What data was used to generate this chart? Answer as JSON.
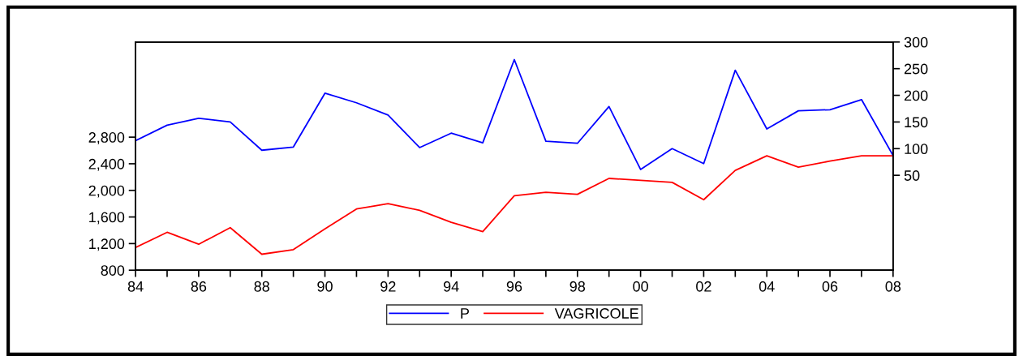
{
  "chart_data": {
    "type": "line",
    "x": [
      1984,
      1985,
      1986,
      1987,
      1988,
      1989,
      1990,
      1991,
      1992,
      1993,
      1994,
      1995,
      1996,
      1997,
      1998,
      1999,
      2000,
      2001,
      2002,
      2003,
      2004,
      2005,
      2006,
      2007,
      2008
    ],
    "series": [
      {
        "name": "P",
        "color": "#0000ff",
        "axis": "y2",
        "values": [
          115,
          144,
          157,
          150,
          97,
          103,
          204,
          186,
          163,
          102,
          129,
          111,
          267,
          114,
          110,
          179,
          61,
          100,
          72,
          247,
          137,
          171,
          173,
          192,
          87
        ]
      },
      {
        "name": "VAGRICOLE",
        "color": "#ff0000",
        "values": [
          1140,
          1370,
          1190,
          1440,
          1040,
          1110,
          1420,
          1720,
          1800,
          1700,
          1520,
          1380,
          1920,
          1970,
          1940,
          2180,
          2150,
          2120,
          1860,
          2300,
          2520,
          2350,
          2440,
          2520,
          2520
        ]
      }
    ],
    "xlim": [
      1984,
      2008
    ],
    "xticks": [
      {
        "value": 1984,
        "label": "84"
      },
      {
        "value": 1985,
        "label": null
      },
      {
        "value": 1986,
        "label": "86"
      },
      {
        "value": 1987,
        "label": null
      },
      {
        "value": 1988,
        "label": "88"
      },
      {
        "value": 1989,
        "label": null
      },
      {
        "value": 1990,
        "label": "90"
      },
      {
        "value": 1991,
        "label": null
      },
      {
        "value": 1992,
        "label": "92"
      },
      {
        "value": 1993,
        "label": null
      },
      {
        "value": 1994,
        "label": "94"
      },
      {
        "value": 1995,
        "label": null
      },
      {
        "value": 1996,
        "label": "96"
      },
      {
        "value": 1997,
        "label": null
      },
      {
        "value": 1998,
        "label": "98"
      },
      {
        "value": 1999,
        "label": null
      },
      {
        "value": 2000,
        "label": "00"
      },
      {
        "value": 2001,
        "label": null
      },
      {
        "value": 2002,
        "label": "02"
      },
      {
        "value": 2003,
        "label": null
      },
      {
        "value": 2004,
        "label": "04"
      },
      {
        "value": 2005,
        "label": null
      },
      {
        "value": 2006,
        "label": "06"
      },
      {
        "value": 2007,
        "label": null
      },
      {
        "value": 2008,
        "label": "08"
      }
    ],
    "ylim": [
      800,
      4230
    ],
    "yticks": [
      {
        "value": 800,
        "label": "800"
      },
      {
        "value": 1200,
        "label": "1,200"
      },
      {
        "value": 1600,
        "label": "1,600"
      },
      {
        "value": 2000,
        "label": "2,000"
      },
      {
        "value": 2400,
        "label": "2,400"
      },
      {
        "value": 2800,
        "label": "2,800"
      }
    ],
    "y2lim": [
      -128,
      300
    ],
    "y2ticks": [
      50,
      100,
      150,
      200,
      250,
      300
    ],
    "grid": false,
    "legend": "bottom"
  }
}
